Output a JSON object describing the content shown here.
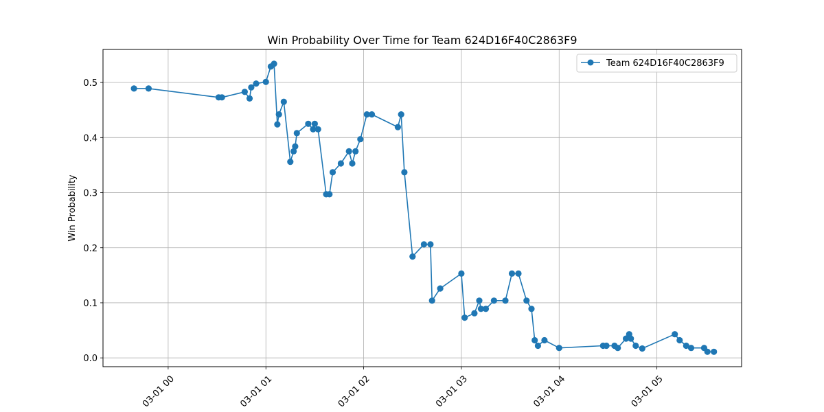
{
  "chart_data": {
    "type": "line",
    "title": "Win Probability Over Time for Team 624D16F40C2863F9",
    "xlabel": "",
    "ylabel": "Win Probability",
    "x_axis": {
      "type": "datetime",
      "range": [
        "2023-02-28 23:20",
        "2023-03-01 05:52"
      ],
      "ticks": [
        {
          "value": "2023-03-01 00:00",
          "label": "03-01 00"
        },
        {
          "value": "2023-03-01 01:00",
          "label": "03-01 01"
        },
        {
          "value": "2023-03-01 02:00",
          "label": "03-01 02"
        },
        {
          "value": "2023-03-01 03:00",
          "label": "03-01 03"
        },
        {
          "value": "2023-03-01 04:00",
          "label": "03-01 04"
        },
        {
          "value": "2023-03-01 05:00",
          "label": "03-01 05"
        }
      ]
    },
    "y_axis": {
      "range": [
        -0.016,
        0.56
      ],
      "ticks": [
        {
          "value": 0.0,
          "label": "0.0"
        },
        {
          "value": 0.1,
          "label": "0.1"
        },
        {
          "value": 0.2,
          "label": "0.2"
        },
        {
          "value": 0.3,
          "label": "0.3"
        },
        {
          "value": 0.4,
          "label": "0.4"
        },
        {
          "value": 0.5,
          "label": "0.5"
        }
      ]
    },
    "grid": true,
    "legend_position": "upper right",
    "series": [
      {
        "name": "Team 624D16F40C2863F9",
        "color": "#1f77b4",
        "marker": "circle",
        "points": [
          [
            "2023-02-28 23:39",
            0.489
          ],
          [
            "2023-02-28 23:48",
            0.489
          ],
          [
            "2023-03-01 00:31",
            0.473
          ],
          [
            "2023-03-01 00:33",
            0.473
          ],
          [
            "2023-03-01 00:47",
            0.483
          ],
          [
            "2023-03-01 00:50",
            0.471
          ],
          [
            "2023-03-01 00:51",
            0.491
          ],
          [
            "2023-03-01 00:54",
            0.498
          ],
          [
            "2023-03-01 01:00",
            0.501
          ],
          [
            "2023-03-01 01:03",
            0.529
          ],
          [
            "2023-03-01 01:05",
            0.534
          ],
          [
            "2023-03-01 01:07",
            0.424
          ],
          [
            "2023-03-01 01:08",
            0.442
          ],
          [
            "2023-03-01 01:11",
            0.465
          ],
          [
            "2023-03-01 01:15",
            0.356
          ],
          [
            "2023-03-01 01:17",
            0.375
          ],
          [
            "2023-03-01 01:18",
            0.384
          ],
          [
            "2023-03-01 01:19",
            0.408
          ],
          [
            "2023-03-01 01:26",
            0.425
          ],
          [
            "2023-03-01 01:29",
            0.415
          ],
          [
            "2023-03-01 01:30",
            0.425
          ],
          [
            "2023-03-01 01:32",
            0.415
          ],
          [
            "2023-03-01 01:37",
            0.297
          ],
          [
            "2023-03-01 01:39",
            0.297
          ],
          [
            "2023-03-01 01:41",
            0.337
          ],
          [
            "2023-03-01 01:46",
            0.353
          ],
          [
            "2023-03-01 01:51",
            0.375
          ],
          [
            "2023-03-01 01:53",
            0.353
          ],
          [
            "2023-03-01 01:55",
            0.375
          ],
          [
            "2023-03-01 01:58",
            0.397
          ],
          [
            "2023-03-01 02:02",
            0.442
          ],
          [
            "2023-03-01 02:05",
            0.442
          ],
          [
            "2023-03-01 02:21",
            0.419
          ],
          [
            "2023-03-01 02:23",
            0.442
          ],
          [
            "2023-03-01 02:25",
            0.337
          ],
          [
            "2023-03-01 02:30",
            0.184
          ],
          [
            "2023-03-01 02:37",
            0.206
          ],
          [
            "2023-03-01 02:41",
            0.206
          ],
          [
            "2023-03-01 02:42",
            0.104
          ],
          [
            "2023-03-01 02:47",
            0.126
          ],
          [
            "2023-03-01 03:00",
            0.153
          ],
          [
            "2023-03-01 03:02",
            0.073
          ],
          [
            "2023-03-01 03:08",
            0.081
          ],
          [
            "2023-03-01 03:11",
            0.104
          ],
          [
            "2023-03-01 03:12",
            0.089
          ],
          [
            "2023-03-01 03:15",
            0.089
          ],
          [
            "2023-03-01 03:20",
            0.104
          ],
          [
            "2023-03-01 03:27",
            0.104
          ],
          [
            "2023-03-01 03:31",
            0.153
          ],
          [
            "2023-03-01 03:35",
            0.153
          ],
          [
            "2023-03-01 03:40",
            0.104
          ],
          [
            "2023-03-01 03:43",
            0.089
          ],
          [
            "2023-03-01 03:45",
            0.032
          ],
          [
            "2023-03-01 03:47",
            0.022
          ],
          [
            "2023-03-01 03:51",
            0.032
          ],
          [
            "2023-03-01 04:00",
            0.018
          ],
          [
            "2023-03-01 04:27",
            0.022
          ],
          [
            "2023-03-01 04:29",
            0.022
          ],
          [
            "2023-03-01 04:34",
            0.022
          ],
          [
            "2023-03-01 04:36",
            0.018
          ],
          [
            "2023-03-01 04:41",
            0.035
          ],
          [
            "2023-03-01 04:43",
            0.043
          ],
          [
            "2023-03-01 04:44",
            0.035
          ],
          [
            "2023-03-01 04:47",
            0.022
          ],
          [
            "2023-03-01 04:51",
            0.017
          ],
          [
            "2023-03-01 05:11",
            0.043
          ],
          [
            "2023-03-01 05:14",
            0.032
          ],
          [
            "2023-03-01 05:18",
            0.022
          ],
          [
            "2023-03-01 05:21",
            0.018
          ],
          [
            "2023-03-01 05:29",
            0.018
          ],
          [
            "2023-03-01 05:31",
            0.011
          ],
          [
            "2023-03-01 05:35",
            0.011
          ]
        ]
      }
    ]
  }
}
